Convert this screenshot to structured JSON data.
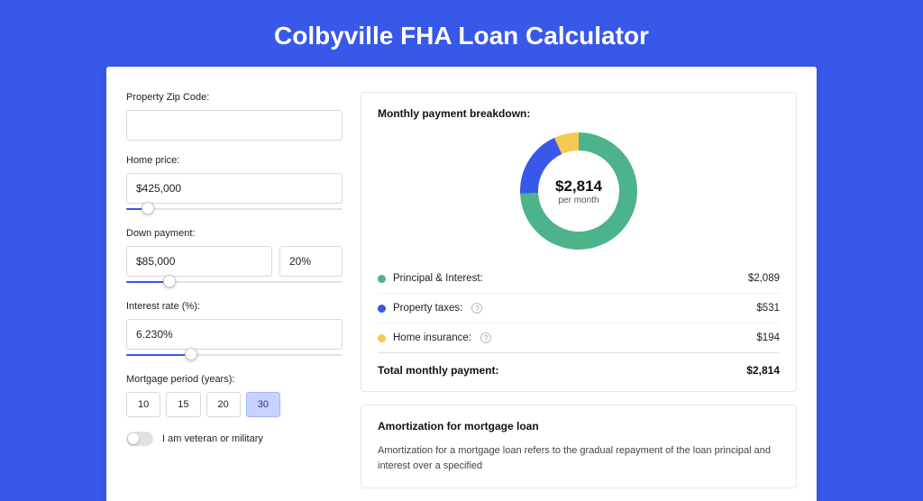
{
  "page": {
    "title": "Colbyville FHA Loan Calculator",
    "background_color": "#3858e9",
    "card_background": "#ffffff"
  },
  "form": {
    "zip": {
      "label": "Property Zip Code:",
      "value": ""
    },
    "home_price": {
      "label": "Home price:",
      "value": "$425,000",
      "slider_pct": 10
    },
    "down_payment": {
      "label": "Down payment:",
      "amount": "$85,000",
      "pct": "20%",
      "slider_pct": 20
    },
    "interest_rate": {
      "label": "Interest rate (%):",
      "value": "6.230%",
      "slider_pct": 30
    },
    "mortgage_period": {
      "label": "Mortgage period (years):",
      "options": [
        "10",
        "15",
        "20",
        "30"
      ],
      "selected": "30"
    },
    "veteran": {
      "label": "I am veteran or military",
      "checked": false
    }
  },
  "breakdown": {
    "title": "Monthly payment breakdown:",
    "donut": {
      "total_amount": "$2,814",
      "sub_label": "per month",
      "segments": [
        {
          "key": "pi",
          "value": 2089,
          "pct": 74.2,
          "color": "#4db38a"
        },
        {
          "key": "tax",
          "value": 531,
          "pct": 18.9,
          "color": "#3858e9"
        },
        {
          "key": "ins",
          "value": 194,
          "pct": 6.9,
          "color": "#f4c851"
        }
      ],
      "stroke_width": 20,
      "radius": 55
    },
    "items": [
      {
        "label": "Principal & Interest:",
        "value": "$2,089",
        "color": "#4db38a",
        "info": false
      },
      {
        "label": "Property taxes:",
        "value": "$531",
        "color": "#3858e9",
        "info": true
      },
      {
        "label": "Home insurance:",
        "value": "$194",
        "color": "#f4c851",
        "info": true
      }
    ],
    "total": {
      "label": "Total monthly payment:",
      "value": "$2,814"
    }
  },
  "amortization": {
    "title": "Amortization for mortgage loan",
    "text": "Amortization for a mortgage loan refers to the gradual repayment of the loan principal and interest over a specified"
  }
}
